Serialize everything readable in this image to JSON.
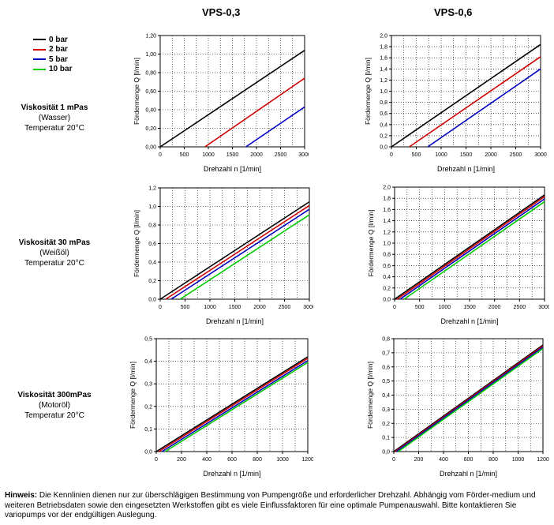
{
  "headers": {
    "vps03": "VPS-0,3",
    "vps06": "VPS-0,6"
  },
  "legend": [
    {
      "label": "0 bar",
      "color": "#000000"
    },
    {
      "label": "2 bar",
      "color": "#d00000"
    },
    {
      "label": "5 bar",
      "color": "#0000c0"
    },
    {
      "label": "10 bar",
      "color": "#00cc00"
    }
  ],
  "rows": [
    {
      "visc": "Viskosität 1 mPas",
      "medium": "(Wasser)",
      "temp": "Temperatur 20°C"
    },
    {
      "visc": "Viskosität 30 mPas",
      "medium": "(Weißöl)",
      "temp": "Temperatur 20°C"
    },
    {
      "visc": "Viskosität 300mPas",
      "medium": "(Motoröl)",
      "temp": "Temperatur 20°C"
    }
  ],
  "note": {
    "bold": "Hinweis:",
    "text": " Die Kennlinien dienen nur zur überschlägigen Bestimmung von Pumpengröße und erforderlicher Drehzahl. Abhängig vom Förder-medium und weiteren Betriebsdaten sowie den eingesetzten Werkstoffen gibt es viele Einflussfaktoren für eine optimale Pumpenauswahl. Bitte kontaktieren Sie variopumps vor der endgültigen Auslegung."
  },
  "chart_data": [
    {
      "type": "line",
      "id": "c1",
      "xlabel": "Drehzahl n [1/min]",
      "ylabel": "Fördermenge Q [l/min]",
      "xlim": [
        0,
        3000
      ],
      "ylim": [
        0,
        1.2
      ],
      "xticks": [
        "0",
        "500",
        "1000",
        "1500",
        "2000",
        "2500",
        "3000"
      ],
      "yticks": [
        "0,00",
        "0,20",
        "0,40",
        "0,60",
        "0,80",
        "1,00",
        "1,20"
      ],
      "series": [
        {
          "name": "0 bar",
          "color": "#000000",
          "x": [
            0,
            3000
          ],
          "y": [
            0,
            1.04
          ]
        },
        {
          "name": "2 bar",
          "color": "#d00000",
          "x": [
            930,
            3000
          ],
          "y": [
            0,
            0.74
          ]
        },
        {
          "name": "5 bar",
          "color": "#0000c0",
          "x": [
            1780,
            3000
          ],
          "y": [
            0,
            0.43
          ]
        }
      ]
    },
    {
      "type": "line",
      "id": "c2",
      "xlabel": "Drehzahl n [1/min]",
      "ylabel": "Fördermenge Q [l/min]",
      "xlim": [
        0,
        3000
      ],
      "ylim": [
        0,
        2.0
      ],
      "xticks": [
        "0",
        "500",
        "1000",
        "1500",
        "2000",
        "2500",
        "3000"
      ],
      "yticks": [
        "0,0",
        "0,2",
        "0,4",
        "0,6",
        "0,8",
        "1,0",
        "1,2",
        "1,4",
        "1,6",
        "1,8",
        "2,0"
      ],
      "series": [
        {
          "name": "0 bar",
          "color": "#000000",
          "x": [
            0,
            3000
          ],
          "y": [
            0,
            1.84
          ]
        },
        {
          "name": "2 bar",
          "color": "#d00000",
          "x": [
            360,
            3000
          ],
          "y": [
            0,
            1.62
          ]
        },
        {
          "name": "5 bar",
          "color": "#0000c0",
          "x": [
            730,
            3000
          ],
          "y": [
            0,
            1.4
          ]
        }
      ]
    },
    {
      "type": "line",
      "id": "c3",
      "xlabel": "Drehzahl n [1/min]",
      "ylabel": "Fördermenge Q [l/min]",
      "xlim": [
        0,
        3000
      ],
      "ylim": [
        0,
        1.2
      ],
      "xticks": [
        "0",
        "500",
        "1000",
        "1500",
        "2000",
        "2500",
        "3000"
      ],
      "yticks": [
        "0,0",
        "0,2",
        "0,4",
        "0,6",
        "0,8",
        "1,0",
        "1,2"
      ],
      "series": [
        {
          "name": "0 bar",
          "color": "#000000",
          "x": [
            0,
            3000
          ],
          "y": [
            0,
            1.05
          ]
        },
        {
          "name": "2 bar",
          "color": "#d00000",
          "x": [
            110,
            3000
          ],
          "y": [
            0,
            1.01
          ]
        },
        {
          "name": "5 bar",
          "color": "#0000c0",
          "x": [
            220,
            3000
          ],
          "y": [
            0,
            0.97
          ]
        },
        {
          "name": "10 bar",
          "color": "#00cc00",
          "x": [
            400,
            3000
          ],
          "y": [
            0,
            0.91
          ]
        }
      ]
    },
    {
      "type": "line",
      "id": "c4",
      "xlabel": "Drehzahl n [1/min]",
      "ylabel": "Fördermenge Q [l/min]",
      "xlim": [
        0,
        3000
      ],
      "ylim": [
        0,
        2.0
      ],
      "xticks": [
        "0",
        "500",
        "1000",
        "1500",
        "2000",
        "2500",
        "3000"
      ],
      "yticks": [
        "0,0",
        "0,2",
        "0,4",
        "0,6",
        "0,8",
        "1,0",
        "1,2",
        "1,4",
        "1,6",
        "1,8",
        "2,0"
      ],
      "series": [
        {
          "name": "0 bar",
          "color": "#000000",
          "x": [
            0,
            3000
          ],
          "y": [
            0,
            1.86
          ]
        },
        {
          "name": "2 bar",
          "color": "#d00000",
          "x": [
            50,
            3000
          ],
          "y": [
            0,
            1.83
          ]
        },
        {
          "name": "5 bar",
          "color": "#0000c0",
          "x": [
            110,
            3000
          ],
          "y": [
            0,
            1.79
          ]
        },
        {
          "name": "10 bar",
          "color": "#00cc00",
          "x": [
            190,
            3000
          ],
          "y": [
            0,
            1.74
          ]
        }
      ]
    },
    {
      "type": "line",
      "id": "c5",
      "xlabel": "Drehzahl n [1/min]",
      "ylabel": "Fördermenge Q [l/min]",
      "xlim": [
        0,
        1200
      ],
      "ylim": [
        0,
        0.5
      ],
      "xticks": [
        "0",
        "200",
        "400",
        "600",
        "800",
        "1000",
        "1200"
      ],
      "yticks": [
        "0,0",
        "0,1",
        "0,2",
        "0,3",
        "0,4",
        "0,5"
      ],
      "series": [
        {
          "name": "0 bar",
          "color": "#000000",
          "x": [
            0,
            1200
          ],
          "y": [
            0,
            0.42
          ]
        },
        {
          "name": "2 bar",
          "color": "#d00000",
          "x": [
            20,
            1200
          ],
          "y": [
            0,
            0.413
          ]
        },
        {
          "name": "5 bar",
          "color": "#0000c0",
          "x": [
            45,
            1200
          ],
          "y": [
            0,
            0.403
          ]
        },
        {
          "name": "10 bar",
          "color": "#00cc00",
          "x": [
            70,
            1200
          ],
          "y": [
            0,
            0.395
          ]
        }
      ]
    },
    {
      "type": "line",
      "id": "c6",
      "xlabel": "Drehzahl n [1/min]",
      "ylabel": "Fördermenge Q [l/min]",
      "xlim": [
        0,
        1200
      ],
      "ylim": [
        0,
        0.8
      ],
      "xticks": [
        "0",
        "200",
        "400",
        "600",
        "800",
        "1000",
        "1200"
      ],
      "yticks": [
        "0,0",
        "0,1",
        "0,2",
        "0,3",
        "0,4",
        "0,5",
        "0,6",
        "0,7",
        "0,8"
      ],
      "series": [
        {
          "name": "0 bar",
          "color": "#000000",
          "x": [
            0,
            1200
          ],
          "y": [
            0,
            0.755
          ]
        },
        {
          "name": "2 bar",
          "color": "#d00000",
          "x": [
            10,
            1200
          ],
          "y": [
            0,
            0.748
          ]
        },
        {
          "name": "5 bar",
          "color": "#0000c0",
          "x": [
            20,
            1200
          ],
          "y": [
            0,
            0.74
          ]
        },
        {
          "name": "10 bar",
          "color": "#00cc00",
          "x": [
            35,
            1200
          ],
          "y": [
            0,
            0.73
          ]
        }
      ]
    }
  ]
}
